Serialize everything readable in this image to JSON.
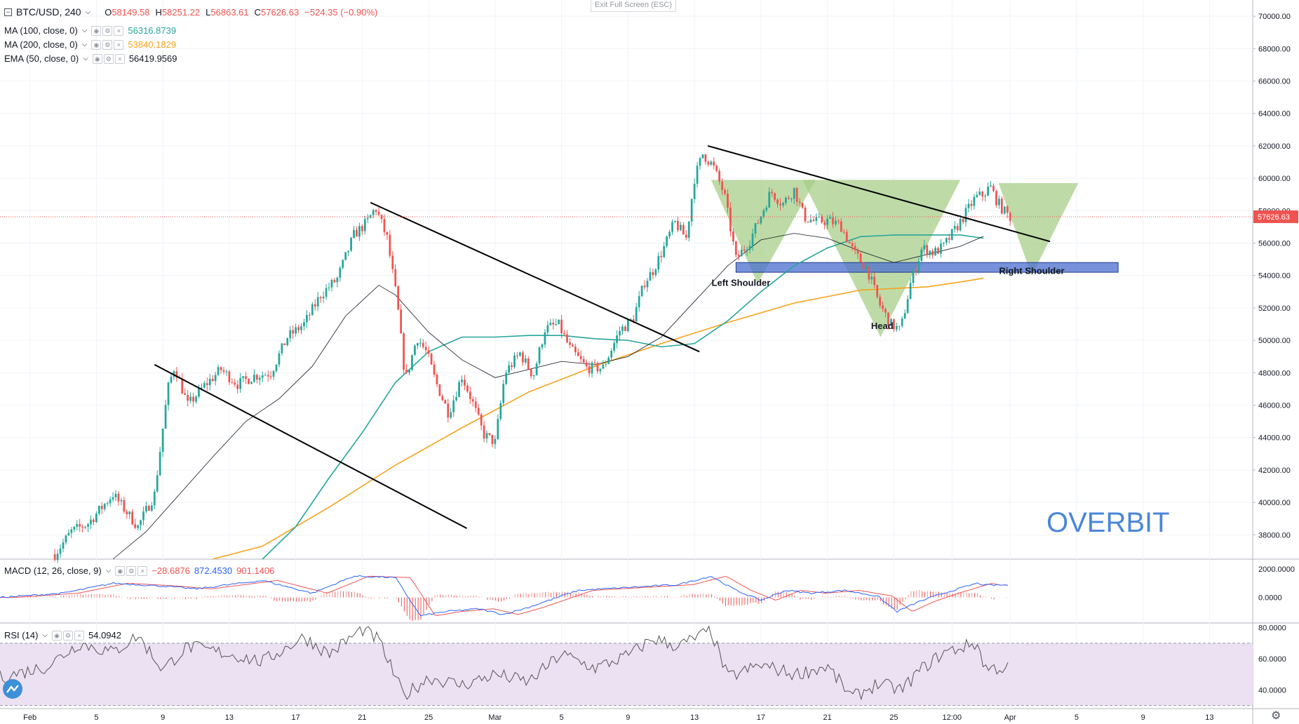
{
  "header": {
    "symbol": "BTC/USD, 240",
    "open_label": "O",
    "open": "58149.58",
    "high_label": "H",
    "high": "58251.22",
    "low_label": "L",
    "low": "56863.61",
    "close_label": "C",
    "close": "57626.63",
    "change": "−524.35 (−0.90%)"
  },
  "indicators": [
    {
      "label": "MA (100, close, 0)",
      "value": "56316.8739",
      "color": "#26a69a"
    },
    {
      "label": "MA (200, close, 0)",
      "value": "53840.1829",
      "color": "#f7a21b"
    },
    {
      "label": "EMA (50, close, 0)",
      "value": "56419.9569",
      "color": "#131722"
    }
  ],
  "macd": {
    "label": "MACD (12, 26, close, 9)",
    "hist": "−28.6876",
    "macd": "872.4530",
    "signal": "901.1406"
  },
  "rsi": {
    "label": "RSI (14)",
    "value": "54.0942"
  },
  "exit_fullscreen": "Exit Full Screen (ESC)",
  "watermark": "OVERBIT",
  "chart_data": {
    "type": "candlestick",
    "symbol": "BTC/USD",
    "timeframe": "240",
    "y_ticks": [
      "70000.00",
      "68000.00",
      "66000.00",
      "64000.00",
      "62000.00",
      "60000.00",
      "58000.00",
      "56000.00",
      "54000.00",
      "52000.00",
      "50000.00",
      "48000.00",
      "46000.00",
      "44000.00",
      "42000.00",
      "40000.00",
      "38000.00"
    ],
    "ylim": [
      36500,
      71000
    ],
    "last_price": "57626.63",
    "x_ticks": [
      "Feb",
      "5",
      "9",
      "13",
      "17",
      "21",
      "25",
      "Mar",
      "5",
      "9",
      "13",
      "17",
      "21",
      "25",
      "12:00",
      "Apr",
      "5",
      "9",
      "13"
    ],
    "x_tick_days": [
      0,
      4,
      8,
      12,
      16,
      20,
      24,
      28,
      32,
      36,
      40,
      44,
      48,
      52,
      55.5,
      59,
      63,
      67,
      71
    ],
    "x_range_days": [
      -1.8,
      73.6
    ],
    "price_path_days": [
      1.5,
      2.5,
      3.5,
      5,
      6.5,
      7.5,
      8.3,
      8.7,
      9.5,
      10.5,
      11.5,
      12.5,
      13.5,
      14.5,
      15.5,
      16.5,
      17.5,
      18.5,
      19.5,
      20.3,
      20.8,
      21.5,
      22.1,
      22.6,
      23.3,
      23.9,
      24.4,
      25.2,
      26,
      26.6,
      27.3,
      28,
      28.6,
      29.5,
      30.3,
      31,
      31.8,
      32.5,
      33.5,
      34.5,
      35.5,
      36.3,
      37,
      37.5,
      38.2,
      38.8,
      39.5,
      40,
      40.5,
      41.1,
      41.8,
      42.5,
      43.3,
      44,
      44.6,
      45.3,
      46,
      46.6,
      47.3,
      48,
      48.8,
      49.6,
      50.4,
      51.1,
      51.8,
      52.4,
      53,
      53.7,
      54.4,
      55,
      55.6,
      56.3,
      56.9,
      57.4,
      57.8,
      58.2,
      58.6,
      59
    ],
    "price_path_values": [
      36800,
      38200,
      38700,
      40500,
      38500,
      40500,
      47000,
      48400,
      46000,
      47200,
      48200,
      47300,
      47800,
      48000,
      50200,
      51000,
      52800,
      53800,
      56500,
      57300,
      58200,
      56300,
      52400,
      47500,
      50200,
      49200,
      47500,
      45500,
      47800,
      46300,
      44200,
      43700,
      48000,
      49200,
      47800,
      50700,
      51000,
      49500,
      48300,
      48300,
      50600,
      51300,
      53600,
      54300,
      55800,
      57300,
      56300,
      60000,
      61500,
      60800,
      59000,
      55000,
      56100,
      57700,
      59200,
      58400,
      59300,
      57600,
      57300,
      57400,
      57100,
      55400,
      54400,
      52300,
      51000,
      50600,
      53500,
      55700,
      55400,
      55800,
      56700,
      57800,
      58800,
      59000,
      59500,
      58600,
      58000,
      57600
    ],
    "ma100_days": [
      14,
      16,
      18,
      20,
      22,
      24,
      26,
      28,
      30,
      32,
      34,
      36,
      38,
      40,
      42,
      44,
      46,
      48,
      50,
      52,
      54,
      56,
      57.4
    ],
    "ma100_values": [
      36500,
      38500,
      41500,
      44300,
      47400,
      49300,
      50200,
      50200,
      50300,
      50300,
      50100,
      50000,
      49600,
      49800,
      51200,
      53000,
      54600,
      55700,
      56400,
      56500,
      56500,
      56500,
      56300
    ],
    "ma200_days": [
      11,
      14,
      18,
      22,
      26,
      30,
      34,
      38,
      42,
      44,
      46,
      48,
      50,
      52,
      54,
      56,
      57.4
    ],
    "ma200_values": [
      36500,
      37300,
      39700,
      42300,
      44600,
      46800,
      48400,
      49800,
      51100,
      51700,
      52300,
      52700,
      53100,
      53200,
      53300,
      53600,
      53840
    ],
    "ema50_days": [
      5,
      7,
      9,
      11,
      13,
      15,
      17,
      19,
      21,
      22,
      24,
      26,
      28,
      30,
      32,
      34,
      36,
      38,
      40,
      42,
      44,
      46,
      48,
      50,
      52,
      54,
      56,
      57.4
    ],
    "ema50_values": [
      36500,
      38200,
      40500,
      42800,
      45000,
      46400,
      48400,
      51500,
      53400,
      52800,
      50500,
      48800,
      47700,
      48200,
      48700,
      48500,
      49000,
      50200,
      52400,
      54600,
      56200,
      56600,
      56300,
      55500,
      54800,
      55300,
      55800,
      56420
    ],
    "macd_ylim": [
      -1800,
      2700
    ],
    "macd_ticks": [
      "2000.0000",
      "0.0000"
    ],
    "macd_path_days": [
      -1.8,
      2,
      5,
      8,
      10,
      14,
      17,
      19.5,
      22,
      23.5,
      25,
      27,
      28.5,
      30,
      33,
      36,
      39,
      41,
      42.5,
      44,
      45.5,
      47,
      49,
      51,
      52.2,
      53.5,
      55,
      57,
      57.5
    ],
    "macd_path_values": [
      0,
      300,
      1000,
      800,
      600,
      1200,
      300,
      1500,
      1400,
      -1300,
      -1000,
      -800,
      -1200,
      -700,
      500,
      700,
      900,
      1500,
      500,
      -200,
      500,
      300,
      500,
      100,
      -1000,
      -300,
      300,
      1000,
      870
    ],
    "rsi_ylim": [
      28,
      83
    ],
    "rsi_ticks": [
      "80.0000",
      "60.0000",
      "40.0000"
    ],
    "rsi_band": [
      30,
      70
    ],
    "rsi_path_days": [
      -1.8,
      1,
      3,
      5,
      6.5,
      8,
      9.5,
      12,
      14,
      16.5,
      18,
      20,
      21,
      22.5,
      24,
      26,
      28,
      30,
      32,
      34,
      36,
      37.5,
      39,
      41,
      42,
      44,
      46,
      48,
      49.5,
      51,
      52.5,
      53.5,
      55,
      57,
      57.5
    ],
    "rsi_path_values": [
      48,
      55,
      70,
      64,
      75,
      53,
      68,
      63,
      58,
      74,
      63,
      79,
      72,
      36,
      48,
      43,
      50,
      45,
      63,
      54,
      62,
      73,
      68,
      78,
      48,
      56,
      50,
      55,
      35,
      44,
      40,
      52,
      64,
      70,
      54
    ],
    "shapes": {
      "channel_upper": {
        "from": [
          20.5,
          58500
        ],
        "to": [
          40.3,
          49300
        ]
      },
      "channel_lower": {
        "from": [
          7.5,
          48500
        ],
        "to": [
          26.3,
          38400
        ]
      },
      "trendline": {
        "from": [
          40.8,
          62000
        ],
        "to": [
          61.4,
          56100
        ]
      },
      "support_zone": {
        "day_from": 42.5,
        "day_to": 65.5,
        "price_from": 54200,
        "price_to": 54800
      },
      "triangle_left": [
        [
          41,
          59900
        ],
        [
          47.3,
          59900
        ],
        [
          43.8,
          53500
        ]
      ],
      "triangle_head": [
        [
          46.5,
          59900
        ],
        [
          56,
          59900
        ],
        [
          51.2,
          50200
        ]
      ],
      "triangle_right": [
        [
          58.3,
          59700
        ],
        [
          63.1,
          59700
        ],
        [
          60.3,
          54000
        ]
      ]
    },
    "annotations": [
      {
        "text": "Left Shoulder",
        "day": 42.8,
        "price": 53350
      },
      {
        "text": "Head",
        "day": 51.3,
        "price": 50700
      },
      {
        "text": "Right Shoulder",
        "day": 60.3,
        "price": 54100
      }
    ],
    "colors": {
      "up": "#26a69a",
      "down": "#ef5350",
      "ma100": "#26a69a",
      "ma200": "#f7a21b",
      "ema50": "#131722",
      "macd": "#2962ff",
      "signal": "#ef5350",
      "rsi": "#555555",
      "rsi_band": "#ece0f3",
      "triangles": "#a5cd85",
      "zone": "#4a6ecf",
      "watermark": "#4a86d8"
    }
  }
}
